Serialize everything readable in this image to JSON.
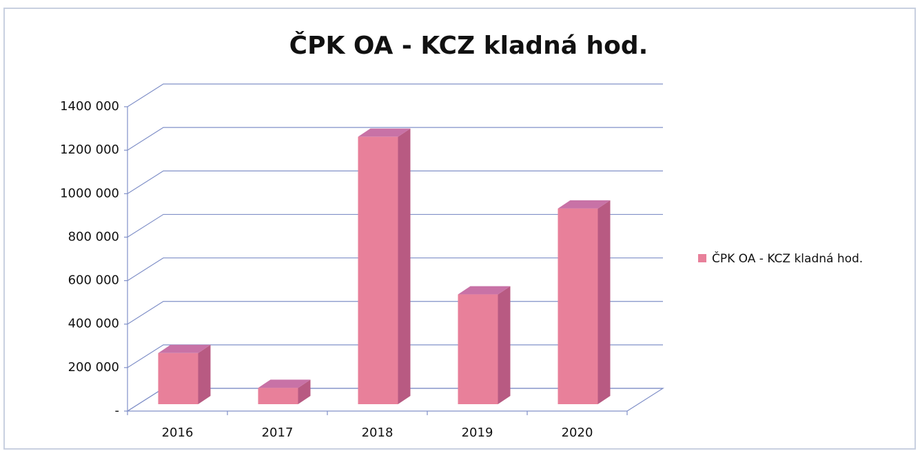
{
  "chart_data": {
    "type": "bar3d",
    "title": "ČPK OA - KCZ kladná  hod.",
    "categories": [
      "2016",
      "2017",
      "2018",
      "2019",
      "2020"
    ],
    "series": [
      {
        "name": "ČPK OA - KCZ kladná  hod.",
        "color": "#e8809a",
        "values": [
          235000,
          75000,
          1230000,
          505000,
          900000
        ]
      }
    ],
    "ylim": [
      0,
      1400000
    ],
    "yticks": [
      {
        "value": 0,
        "label": "-"
      },
      {
        "value": 200000,
        "label": "200 000"
      },
      {
        "value": 400000,
        "label": "400 000"
      },
      {
        "value": 600000,
        "label": "600 000"
      },
      {
        "value": 800000,
        "label": "800 000"
      },
      {
        "value": 1000000,
        "label": "1000 000"
      },
      {
        "value": 1200000,
        "label": "1200 000"
      },
      {
        "value": 1400000,
        "label": "1400 000"
      }
    ],
    "grid": true,
    "legend": "right"
  }
}
